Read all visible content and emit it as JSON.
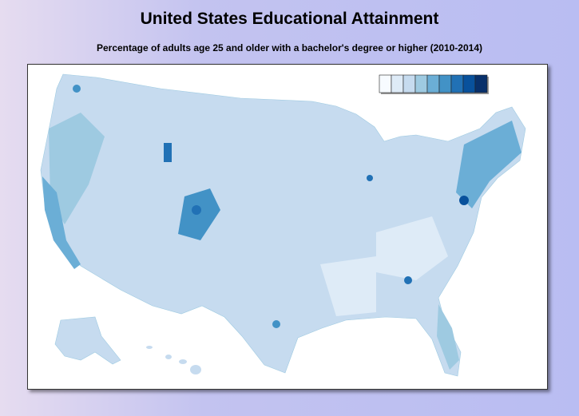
{
  "title": "United States Educational Attainment",
  "subtitle": "Percentage of adults age 25 and older with a bachelor's degree or higher (2010-2014)",
  "legend": {
    "colors": [
      "#f7fbff",
      "#deebf7",
      "#c6dbef",
      "#9ecae1",
      "#6baed6",
      "#4292c6",
      "#2171b5",
      "#08519c",
      "#08306b"
    ]
  }
}
